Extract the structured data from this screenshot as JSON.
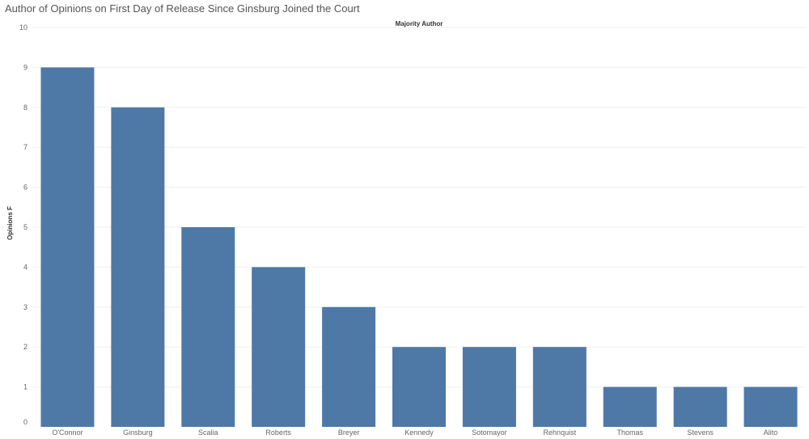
{
  "page": {
    "title": "Author of Opinions on First Day of Release Since Ginsburg Joined the Court"
  },
  "chart_data": {
    "type": "bar",
    "title": "Author of Opinions on First Day of Release Since Ginsburg Joined the Court",
    "xlabel": "Majority Author",
    "ylabel": "Opinions F",
    "categories": [
      "O'Connor",
      "Ginsburg",
      "Scalia",
      "Roberts",
      "Breyer",
      "Kennedy",
      "Sotomayor",
      "Rehnquist",
      "Thomas",
      "Stevens",
      "Alito"
    ],
    "values": [
      9,
      8,
      5,
      4,
      3,
      2,
      2,
      2,
      1,
      1,
      1
    ],
    "ylim": [
      0,
      10
    ],
    "yticks": [
      0,
      1,
      2,
      3,
      4,
      5,
      6,
      7,
      8,
      9,
      10
    ],
    "grid": true,
    "bar_color": "#4e79a7",
    "grid_color": "#f0f0f0"
  }
}
